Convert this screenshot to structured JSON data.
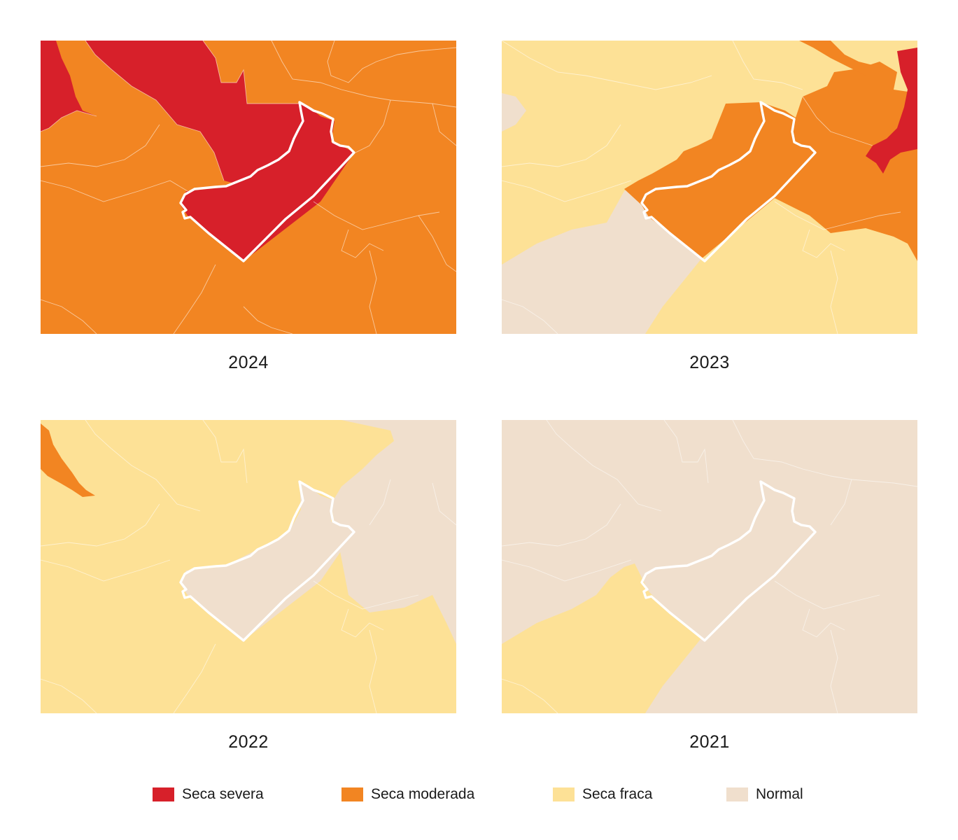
{
  "colors": {
    "severa": "#d7202a",
    "moderada": "#f28522",
    "fraca": "#fde196",
    "normal": "#f0dfcd"
  },
  "panels": [
    {
      "year": "2024"
    },
    {
      "year": "2023"
    },
    {
      "year": "2022"
    },
    {
      "year": "2021"
    }
  ],
  "legend": [
    {
      "label": "Seca severa",
      "color_key": "severa"
    },
    {
      "label": "Seca moderada",
      "color_key": "moderada"
    },
    {
      "label": "Seca fraca",
      "color_key": "fraca"
    },
    {
      "label": "Normal",
      "color_key": "normal"
    }
  ]
}
